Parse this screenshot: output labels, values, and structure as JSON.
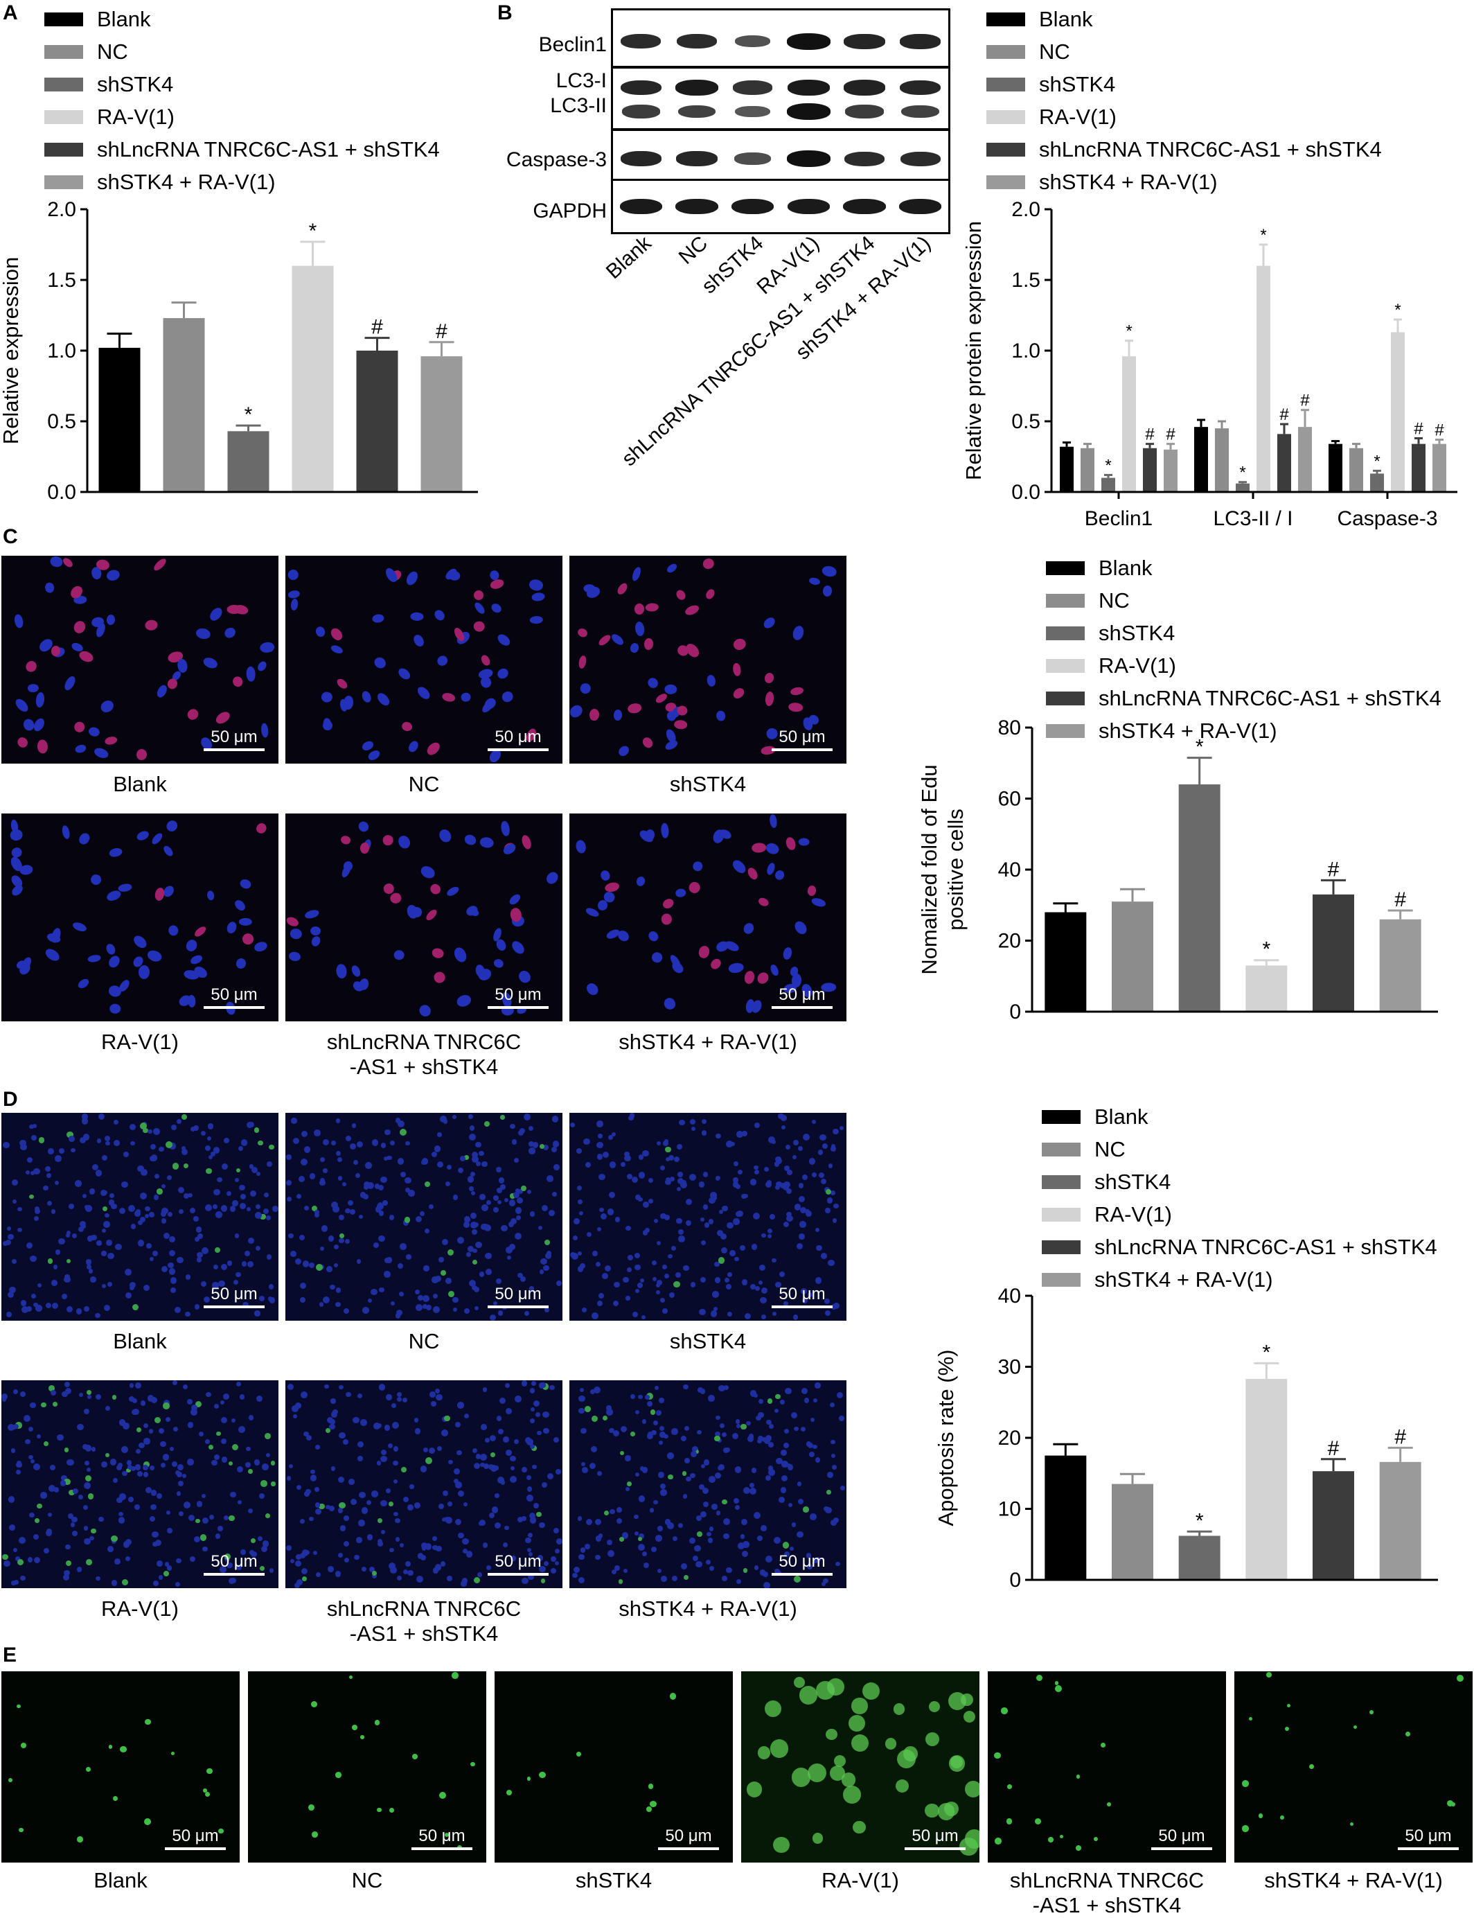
{
  "colors": {
    "Blank": "#000000",
    "NC": "#8c8c8c",
    "shSTK4": "#6a6a6a",
    "RA-V(1)": "#d3d3d3",
    "shLncRNA TNRC6C-AS1 + shSTK4": "#3c3c3c",
    "shSTK4 + RA-V(1)": "#9a9a9a"
  },
  "groups": [
    "Blank",
    "NC",
    "shSTK4",
    "RA-V(1)",
    "shLncRNA TNRC6C-AS1 + shSTK4",
    "shSTK4 + RA-V(1)"
  ],
  "panels": {
    "A": "A",
    "B": "B",
    "C": "C",
    "D": "D",
    "E": "E"
  },
  "western_blot": {
    "proteins": [
      "Beclin1",
      "LC3-I",
      "LC3-II",
      "Caspase-3",
      "GAPDH"
    ],
    "lanes": [
      "Blank",
      "NC",
      "shSTK4",
      "RA-V(1)",
      "shLncRNA TNRC6C-AS1 + shSTK4",
      "shSTK4 + RA-V(1)"
    ]
  },
  "micro_C": {
    "scale": "50 μm",
    "captions": [
      "Blank",
      "NC",
      "shSTK4",
      "RA-V(1)",
      "shLncRNA TNRC6C\n-AS1 + shSTK4",
      "shSTK4 + RA-V(1)"
    ]
  },
  "micro_D": {
    "scale": "50 μm",
    "captions": [
      "Blank",
      "NC",
      "shSTK4",
      "RA-V(1)",
      "shLncRNA TNRC6C\n-AS1 + shSTK4",
      "shSTK4 + RA-V(1)"
    ]
  },
  "micro_E": {
    "scale": "50 μm",
    "captions": [
      "Blank",
      "NC",
      "shSTK4",
      "RA-V(1)",
      "shLncRNA TNRC6C\n-AS1 + shSTK4",
      "shSTK4 + RA-V(1)"
    ]
  },
  "chart_data": [
    {
      "id": "A",
      "type": "bar",
      "categories": [
        "Blank",
        "NC",
        "shSTK4",
        "RA-V(1)",
        "shLncRNA TNRC6C-AS1 + shSTK4",
        "shSTK4 + RA-V(1)"
      ],
      "values": [
        1.02,
        1.23,
        0.43,
        1.6,
        1.0,
        0.96
      ],
      "errors": [
        0.1,
        0.11,
        0.04,
        0.17,
        0.09,
        0.1
      ],
      "marks": [
        "",
        "",
        "*",
        "*",
        "#",
        "#"
      ],
      "ylabel": "Relative expression",
      "ylim": [
        0,
        2.0
      ],
      "yticks": [
        "0.0",
        "0.5",
        "1.0",
        "1.5",
        "2.0"
      ],
      "legend": "top"
    },
    {
      "id": "B",
      "type": "bar",
      "categories": [
        "Beclin1",
        "LC3-II / I",
        "Caspase-3"
      ],
      "series": [
        {
          "name": "Blank",
          "values": [
            0.32,
            0.46,
            0.34
          ],
          "errors": [
            0.03,
            0.05,
            0.02
          ],
          "marks": [
            "",
            "",
            ""
          ]
        },
        {
          "name": "NC",
          "values": [
            0.31,
            0.45,
            0.31
          ],
          "errors": [
            0.03,
            0.05,
            0.03
          ],
          "marks": [
            "",
            "",
            ""
          ]
        },
        {
          "name": "shSTK4",
          "values": [
            0.1,
            0.06,
            0.13
          ],
          "errors": [
            0.02,
            0.01,
            0.02
          ],
          "marks": [
            "*",
            "*",
            "*"
          ]
        },
        {
          "name": "RA-V(1)",
          "values": [
            0.96,
            1.6,
            1.13
          ],
          "errors": [
            0.11,
            0.15,
            0.09
          ],
          "marks": [
            "*",
            "*",
            "*"
          ]
        },
        {
          "name": "shLncRNA TNRC6C-AS1 + shSTK4",
          "values": [
            0.31,
            0.41,
            0.34
          ],
          "errors": [
            0.03,
            0.07,
            0.04
          ],
          "marks": [
            "#",
            "#",
            "#"
          ]
        },
        {
          "name": "shSTK4 + RA-V(1)",
          "values": [
            0.3,
            0.46,
            0.34
          ],
          "errors": [
            0.04,
            0.12,
            0.03
          ],
          "marks": [
            "#",
            "#",
            "#"
          ]
        }
      ],
      "ylabel": "Relative protein expression",
      "ylim": [
        0,
        2.0
      ],
      "yticks": [
        "0.0",
        "0.5",
        "1.0",
        "1.5",
        "2.0"
      ],
      "legend": "top"
    },
    {
      "id": "C",
      "type": "bar",
      "categories": [
        "Blank",
        "NC",
        "shSTK4",
        "RA-V(1)",
        "shLncRNA TNRC6C-AS1 + shSTK4",
        "shSTK4 + RA-V(1)"
      ],
      "values": [
        28,
        31,
        64,
        13,
        33,
        26
      ],
      "errors": [
        2.5,
        3.5,
        7.5,
        1.5,
        4.0,
        2.5
      ],
      "marks": [
        "",
        "",
        "*",
        "*",
        "#",
        "#"
      ],
      "ylabel": "Nomalized fold of Edu\npositive cells",
      "ylim": [
        0,
        80
      ],
      "yticks": [
        "0",
        "20",
        "40",
        "60",
        "80"
      ],
      "legend": "top"
    },
    {
      "id": "D",
      "type": "bar",
      "categories": [
        "Blank",
        "NC",
        "shSTK4",
        "RA-V(1)",
        "shLncRNA TNRC6C-AS1 + shSTK4",
        "shSTK4 + RA-V(1)"
      ],
      "values": [
        17.5,
        13.5,
        6.2,
        28.3,
        15.3,
        16.6
      ],
      "errors": [
        1.6,
        1.4,
        0.6,
        2.2,
        1.7,
        2.0
      ],
      "marks": [
        "",
        "",
        "*",
        "*",
        "#",
        "#"
      ],
      "ylabel": "Apoptosis rate (%)",
      "ylim": [
        0,
        40
      ],
      "yticks": [
        "0",
        "10",
        "20",
        "30",
        "40"
      ],
      "legend": "top"
    }
  ]
}
